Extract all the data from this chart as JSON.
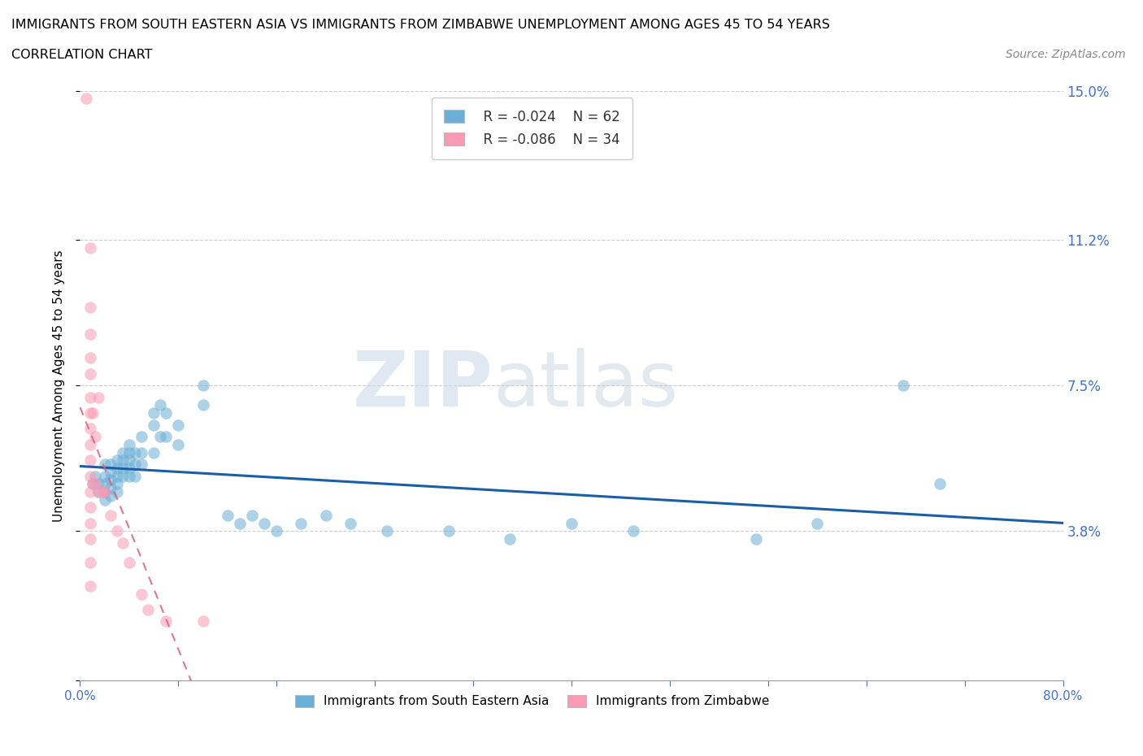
{
  "title_line1": "IMMIGRANTS FROM SOUTH EASTERN ASIA VS IMMIGRANTS FROM ZIMBABWE UNEMPLOYMENT AMONG AGES 45 TO 54 YEARS",
  "title_line2": "CORRELATION CHART",
  "source_text": "Source: ZipAtlas.com",
  "ylabel": "Unemployment Among Ages 45 to 54 years",
  "xlim": [
    0.0,
    0.8
  ],
  "ylim": [
    0.0,
    0.15
  ],
  "yticks": [
    0.0,
    0.038,
    0.075,
    0.112,
    0.15
  ],
  "ytick_labels": [
    "",
    "3.8%",
    "7.5%",
    "11.2%",
    "15.0%"
  ],
  "xtick_labels": [
    "0.0%",
    "",
    "",
    "",
    "",
    "",
    "",
    "",
    "",
    "",
    "80.0%"
  ],
  "grid_color": "#cccccc",
  "watermark_zip": "ZIP",
  "watermark_atlas": "atlas",
  "legend_R1": "R = -0.024",
  "legend_N1": "N = 62",
  "legend_R2": "R = -0.086",
  "legend_N2": "N = 34",
  "color_asia": "#6baed6",
  "color_zimbabwe": "#fb9ab3",
  "trend_color_asia": "#1a5ea8",
  "trend_color_zimbabwe": "#d9607e",
  "asia_scatter": [
    [
      0.01,
      0.05
    ],
    [
      0.012,
      0.052
    ],
    [
      0.015,
      0.05
    ],
    [
      0.015,
      0.048
    ],
    [
      0.02,
      0.055
    ],
    [
      0.02,
      0.052
    ],
    [
      0.02,
      0.05
    ],
    [
      0.02,
      0.048
    ],
    [
      0.02,
      0.046
    ],
    [
      0.025,
      0.055
    ],
    [
      0.025,
      0.053
    ],
    [
      0.025,
      0.051
    ],
    [
      0.025,
      0.049
    ],
    [
      0.025,
      0.047
    ],
    [
      0.03,
      0.056
    ],
    [
      0.03,
      0.054
    ],
    [
      0.03,
      0.052
    ],
    [
      0.03,
      0.05
    ],
    [
      0.03,
      0.048
    ],
    [
      0.035,
      0.058
    ],
    [
      0.035,
      0.056
    ],
    [
      0.035,
      0.054
    ],
    [
      0.035,
      0.052
    ],
    [
      0.04,
      0.06
    ],
    [
      0.04,
      0.058
    ],
    [
      0.04,
      0.056
    ],
    [
      0.04,
      0.054
    ],
    [
      0.04,
      0.052
    ],
    [
      0.045,
      0.058
    ],
    [
      0.045,
      0.055
    ],
    [
      0.045,
      0.052
    ],
    [
      0.05,
      0.062
    ],
    [
      0.05,
      0.058
    ],
    [
      0.05,
      0.055
    ],
    [
      0.06,
      0.068
    ],
    [
      0.06,
      0.065
    ],
    [
      0.06,
      0.058
    ],
    [
      0.065,
      0.07
    ],
    [
      0.065,
      0.062
    ],
    [
      0.07,
      0.068
    ],
    [
      0.07,
      0.062
    ],
    [
      0.08,
      0.065
    ],
    [
      0.08,
      0.06
    ],
    [
      0.1,
      0.075
    ],
    [
      0.1,
      0.07
    ],
    [
      0.12,
      0.042
    ],
    [
      0.13,
      0.04
    ],
    [
      0.14,
      0.042
    ],
    [
      0.15,
      0.04
    ],
    [
      0.16,
      0.038
    ],
    [
      0.18,
      0.04
    ],
    [
      0.2,
      0.042
    ],
    [
      0.22,
      0.04
    ],
    [
      0.25,
      0.038
    ],
    [
      0.3,
      0.038
    ],
    [
      0.35,
      0.036
    ],
    [
      0.4,
      0.04
    ],
    [
      0.45,
      0.038
    ],
    [
      0.55,
      0.036
    ],
    [
      0.6,
      0.04
    ],
    [
      0.67,
      0.075
    ],
    [
      0.7,
      0.05
    ]
  ],
  "zimbabwe_scatter": [
    [
      0.005,
      0.148
    ],
    [
      0.008,
      0.11
    ],
    [
      0.008,
      0.095
    ],
    [
      0.008,
      0.088
    ],
    [
      0.008,
      0.082
    ],
    [
      0.008,
      0.078
    ],
    [
      0.008,
      0.072
    ],
    [
      0.008,
      0.068
    ],
    [
      0.008,
      0.064
    ],
    [
      0.008,
      0.06
    ],
    [
      0.008,
      0.056
    ],
    [
      0.008,
      0.052
    ],
    [
      0.008,
      0.048
    ],
    [
      0.008,
      0.044
    ],
    [
      0.008,
      0.04
    ],
    [
      0.008,
      0.036
    ],
    [
      0.008,
      0.03
    ],
    [
      0.008,
      0.024
    ],
    [
      0.01,
      0.068
    ],
    [
      0.01,
      0.05
    ],
    [
      0.012,
      0.062
    ],
    [
      0.012,
      0.05
    ],
    [
      0.015,
      0.072
    ],
    [
      0.015,
      0.048
    ],
    [
      0.018,
      0.048
    ],
    [
      0.02,
      0.048
    ],
    [
      0.025,
      0.042
    ],
    [
      0.03,
      0.038
    ],
    [
      0.035,
      0.035
    ],
    [
      0.04,
      0.03
    ],
    [
      0.05,
      0.022
    ],
    [
      0.055,
      0.018
    ],
    [
      0.07,
      0.015
    ],
    [
      0.1,
      0.015
    ]
  ]
}
